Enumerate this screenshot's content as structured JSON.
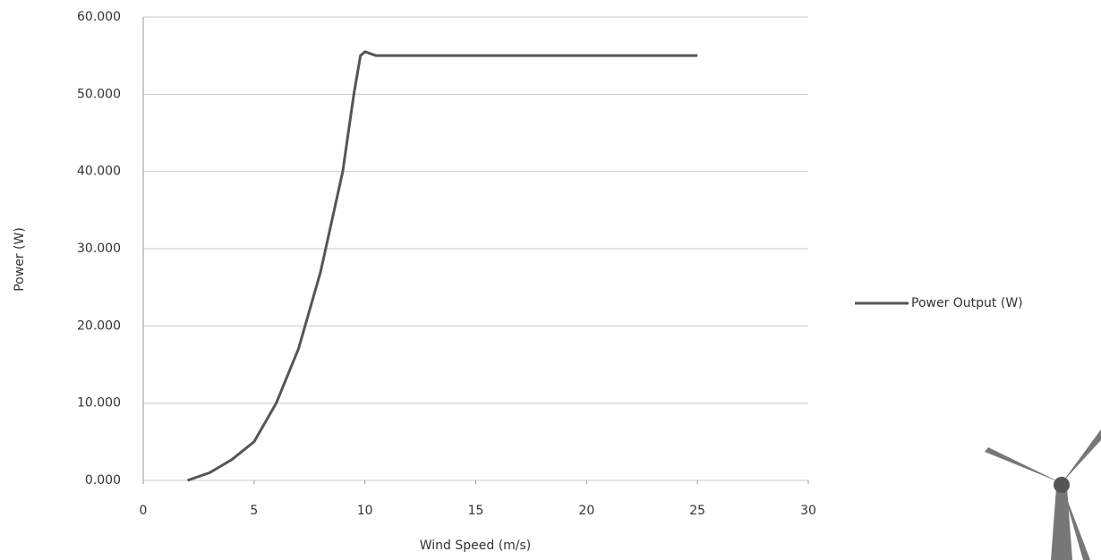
{
  "chart_data": {
    "type": "line",
    "x_label": "Wind Speed (m/s)",
    "y_label": "Power (W)",
    "x": [
      2,
      3,
      4,
      5,
      6,
      7,
      8,
      9,
      9.5,
      9.8,
      10,
      10.5,
      11,
      12,
      15,
      20,
      25
    ],
    "series": [
      {
        "name": "Power Output (W)",
        "color": "#555555",
        "values": [
          0,
          1000,
          2700,
          5000,
          10000,
          17000,
          27000,
          40000,
          50000,
          55000,
          55500,
          55000,
          55000,
          55000,
          55000,
          55000,
          55000
        ]
      }
    ],
    "xlim": [
      0,
      30
    ],
    "xticks": [
      0,
      5,
      10,
      15,
      20,
      25,
      30
    ],
    "ylim": [
      0,
      60000
    ],
    "yticks": [
      {
        "value": 0,
        "label": "0.000"
      },
      {
        "value": 10000,
        "label": "10.000"
      },
      {
        "value": 20000,
        "label": "20.000"
      },
      {
        "value": 30000,
        "label": "30.000"
      },
      {
        "value": 40000,
        "label": "40.000"
      },
      {
        "value": 50000,
        "label": "50.000"
      },
      {
        "value": 60000,
        "label": "60.000"
      }
    ],
    "grid": true,
    "legend": "right"
  }
}
